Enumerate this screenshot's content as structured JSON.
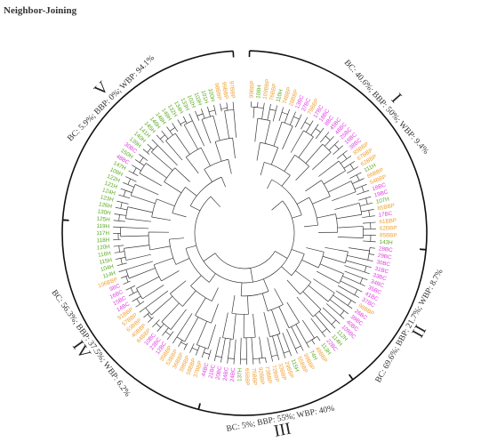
{
  "title": "Neighbor-Joining",
  "colors": {
    "BBP": "#f0a030",
    "WBP": "#5aaa1e",
    "BC": "#e03ee0",
    "branch": "#3a3a3a",
    "arc": "#111111"
  },
  "clades": [
    {
      "numeral": "I",
      "label": "BC: 40.6%; BBP: 50%; WBP: 9.4%"
    },
    {
      "numeral": "II",
      "label": "BC: 69.6%; BBP: 21.7%; WBP: 8.7%"
    },
    {
      "numeral": "III",
      "label": "BC: 5%; BBP: 55%; WBP: 40%"
    },
    {
      "numeral": "IV",
      "label": "BC: 56.3%; BBP: 37.5%; WBP: 6.2%"
    },
    {
      "numeral": "V",
      "label": "BC: 5.9%; BBP: 0%; WBP: 94.1%"
    }
  ],
  "leaves": [
    "99BBP",
    "108H",
    "109BBP",
    "76BBP",
    "110H",
    "74BBP",
    "28BBP",
    "13BC",
    "37BC",
    "79BBP",
    "17BC",
    "18BC",
    "8BC",
    "45BC",
    "46BC",
    "25BC",
    "16BC",
    "38BC",
    "89BBP",
    "67BBP",
    "62BBP",
    "111H",
    "86BBP",
    "54BBP",
    "18BC",
    "19BC",
    "107H",
    "85BBP",
    "17BC",
    "61BBP",
    "62BBP",
    "85BBP",
    "143H",
    "28BC",
    "29BC",
    "30BC",
    "31BC",
    "33BC",
    "34BC",
    "35BC",
    "41BC",
    "37BC",
    "98BBP",
    "26BC",
    "39BC",
    "40BC",
    "109BC",
    "112H",
    "114H",
    "22BC",
    "113H",
    "49BBP",
    "74H",
    "99BBP",
    "55BBP",
    "115H",
    "29BBP",
    "33BBP",
    "72BBP",
    "73BBP",
    "92BBP",
    "75BBP",
    "65BBP",
    "137H",
    "24BC",
    "24BC",
    "20BC",
    "21BC",
    "44BC",
    "37BBP",
    "58BBP",
    "39BBP",
    "36BBP",
    "53BBP",
    "35BBP",
    "12BC",
    "23BC",
    "10BC",
    "64BBP",
    "40BBP",
    "63BBP",
    "57BBP",
    "91BBP",
    "14BC",
    "15BC",
    "16BC",
    "9BC",
    "106BBP",
    "114H",
    "104H",
    "115H",
    "116H",
    "120H",
    "118H",
    "117H",
    "119H",
    "125H",
    "130H",
    "126H",
    "123H",
    "124H",
    "121H",
    "122H",
    "109H",
    "147H",
    "48BC",
    "150H",
    "30BC",
    "139H",
    "140H",
    "141H",
    "145H",
    "146H",
    "148H",
    "149H",
    "132H",
    "134H",
    "133H",
    "102H",
    "103H",
    "101H",
    "100H",
    "98BBP",
    "99BBP",
    "97BBP"
  ]
}
